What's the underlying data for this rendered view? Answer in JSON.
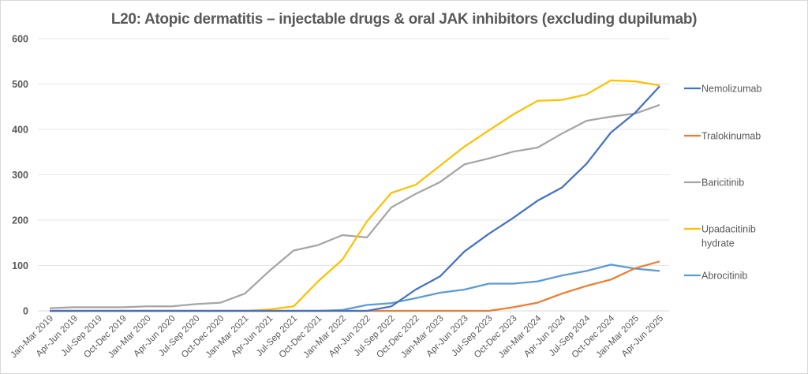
{
  "chart_data": {
    "type": "line",
    "title": "L20: Atopic dermatitis – injectable drugs & oral JAK inhibitors (excluding dupilumab)",
    "xlabel": "",
    "ylabel": "",
    "ylim": [
      0,
      600
    ],
    "yticks": [
      0,
      100,
      200,
      300,
      400,
      500,
      600
    ],
    "grid": true,
    "legend_position": "right",
    "categories": [
      "Jan-Mar 2019",
      "Apr-Jun 2019",
      "Jul-Sep 2019",
      "Oct-Dec 2019",
      "Jan-Mar 2020",
      "Apr-Jun 2020",
      "Jul-Sep 2020",
      "Oct-Dec 2020",
      "Jan-Mar 2021",
      "Apr-Jun 2021",
      "Jul-Sep 2021",
      "Oct-Dec 2021",
      "Jan-Mar 2022",
      "Apr-Jun 2022",
      "Jul-Sep 2022",
      "Oct-Dec 2022",
      "Jan-Mar 2023",
      "Apr-Jun 2023",
      "Jul-Sep 2023",
      "Oct-Dec 2023",
      "Jan-Mar 2024",
      "Apr-Jun 2024",
      "Jul-Sep 2024",
      "Oct-Dec 2024",
      "Jan-Mar 2025",
      "Apr-Jun 2025"
    ],
    "series": [
      {
        "name": "Nemolizumab",
        "legend_lines": [
          "Nemolizumab"
        ],
        "color": "#4472c4",
        "values": [
          0,
          0,
          0,
          0,
          0,
          0,
          0,
          0,
          0,
          0,
          0,
          0,
          0,
          0,
          10,
          47,
          76,
          131,
          170,
          205,
          243,
          272,
          324,
          393,
          437,
          495
        ]
      },
      {
        "name": "Tralokinumab",
        "legend_lines": [
          "Tralokinumab"
        ],
        "color": "#ed7d31",
        "values": [
          0,
          0,
          0,
          0,
          0,
          0,
          0,
          0,
          0,
          0,
          0,
          0,
          0,
          0,
          0,
          0,
          0,
          0,
          0,
          8,
          18,
          38,
          55,
          69,
          94,
          109
        ]
      },
      {
        "name": "Baricitinib",
        "legend_lines": [
          "Baricitinib"
        ],
        "color": "#a5a5a5",
        "values": [
          6,
          8,
          8,
          8,
          10,
          10,
          15,
          18,
          38,
          88,
          133,
          145,
          167,
          162,
          228,
          258,
          284,
          323,
          336,
          351,
          360,
          391,
          419,
          428,
          435,
          454
        ]
      },
      {
        "name": "Upadacitinib hydrate",
        "legend_lines": [
          "Upadacitinib",
          "hydrate"
        ],
        "color": "#ffc000",
        "values": [
          0,
          0,
          0,
          0,
          0,
          0,
          0,
          0,
          0,
          3,
          10,
          65,
          113,
          197,
          260,
          278,
          320,
          362,
          398,
          433,
          463,
          465,
          477,
          508,
          506,
          497
        ]
      },
      {
        "name": "Abrocitinib",
        "legend_lines": [
          "Abrocitinib"
        ],
        "color": "#5b9bd5",
        "values": [
          0,
          0,
          0,
          0,
          0,
          0,
          0,
          0,
          0,
          0,
          0,
          0,
          2,
          13,
          17,
          28,
          40,
          47,
          60,
          60,
          65,
          78,
          88,
          102,
          93,
          88
        ]
      }
    ]
  }
}
